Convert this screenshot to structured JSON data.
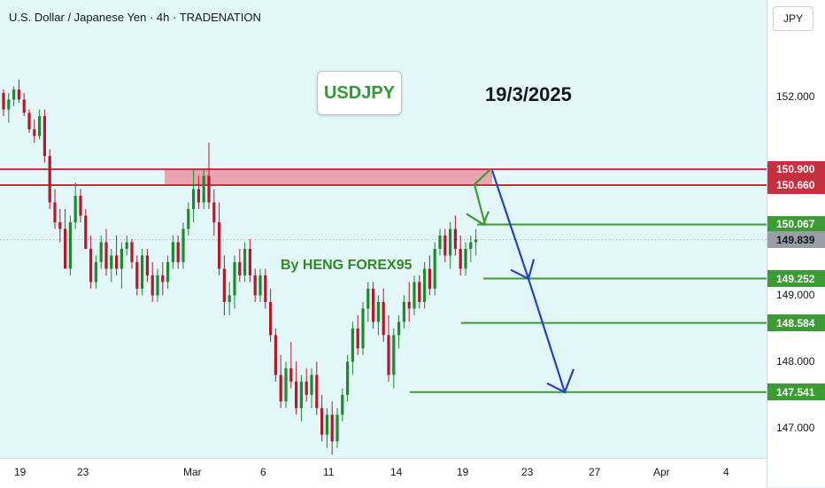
{
  "header": {
    "title": "U.S. Dollar / Japanese Yen · 4h · TRADENATION"
  },
  "currency_badge": "JPY",
  "annotations": {
    "symbol": "USDJPY",
    "date": "19/3/2025",
    "author": "By HENG FOREX95"
  },
  "colors": {
    "bull": "#1e8a2e",
    "bear": "#b3182b",
    "resistance": "#c62f3e",
    "support": "#3c9c34",
    "arrow": "#2242c4",
    "zone": "#e98a9a",
    "current": "#9a9ea4"
  },
  "chart_data": {
    "type": "candlestick",
    "title": "U.S. Dollar / Japanese Yen · 4h · TRADENATION",
    "y_ticks": [
      "152.000",
      "149.000",
      "148.000",
      "147.000"
    ],
    "y_tick_values": [
      152.0,
      149.0,
      148.0,
      147.0
    ],
    "x_ticks": [
      "19",
      "23",
      "Mar",
      "6",
      "11",
      "14",
      "19",
      "23",
      "27",
      "Apr",
      "4"
    ],
    "ylim": [
      146.55,
      153.45
    ],
    "price_levels": [
      {
        "label": "150.900",
        "value": 150.9,
        "kind": "resistance"
      },
      {
        "label": "150.660",
        "value": 150.66,
        "kind": "resistance"
      },
      {
        "label": "150.067",
        "value": 150.067,
        "kind": "support"
      },
      {
        "label": "149.839",
        "value": 149.839,
        "kind": "current"
      },
      {
        "label": "149.252",
        "value": 149.252,
        "kind": "support"
      },
      {
        "label": "148.584",
        "value": 148.584,
        "kind": "support"
      },
      {
        "label": "147.541",
        "value": 147.541,
        "kind": "support"
      }
    ],
    "resistance_zone": [
      150.66,
      150.9
    ],
    "projected_path": [
      150.88,
      149.25,
      147.54
    ],
    "series": [
      {
        "values": [
          [
            152.05,
            152.1,
            151.7,
            151.8
          ],
          [
            151.8,
            152.05,
            151.6,
            151.95
          ],
          [
            151.95,
            152.15,
            151.85,
            152.1
          ],
          [
            152.1,
            152.25,
            151.9,
            151.95
          ],
          [
            151.95,
            152.05,
            151.7,
            151.75
          ],
          [
            151.75,
            151.8,
            151.45,
            151.5
          ],
          [
            151.5,
            151.65,
            151.3,
            151.4
          ],
          [
            151.4,
            151.8,
            151.35,
            151.7
          ],
          [
            151.7,
            151.8,
            151.0,
            151.1
          ],
          [
            151.1,
            151.2,
            150.3,
            150.4
          ],
          [
            150.4,
            150.6,
            150.0,
            150.1
          ],
          [
            150.1,
            150.3,
            149.8,
            150.0
          ],
          [
            150.0,
            150.3,
            149.4,
            149.4
          ],
          [
            149.4,
            150.2,
            149.3,
            150.1
          ],
          [
            150.1,
            150.7,
            150.0,
            150.5
          ],
          [
            150.5,
            150.6,
            150.1,
            150.2
          ],
          [
            150.2,
            150.3,
            149.7,
            149.7
          ],
          [
            149.7,
            149.9,
            149.1,
            149.2
          ],
          [
            149.2,
            149.6,
            149.1,
            149.5
          ],
          [
            149.5,
            149.9,
            149.4,
            149.8
          ],
          [
            149.8,
            150.0,
            149.3,
            149.4
          ],
          [
            149.4,
            149.7,
            149.2,
            149.6
          ],
          [
            149.6,
            149.9,
            149.3,
            149.4
          ],
          [
            149.4,
            149.8,
            149.1,
            149.7
          ],
          [
            149.7,
            149.9,
            149.6,
            149.8
          ],
          [
            149.8,
            149.85,
            149.4,
            149.5
          ],
          [
            149.5,
            149.6,
            149.0,
            149.1
          ],
          [
            149.1,
            149.7,
            149.0,
            149.6
          ],
          [
            149.6,
            149.7,
            149.2,
            149.3
          ],
          [
            149.3,
            149.5,
            148.9,
            149.0
          ],
          [
            149.0,
            149.4,
            148.9,
            149.3
          ],
          [
            149.3,
            149.5,
            149.0,
            149.2
          ],
          [
            149.2,
            149.6,
            149.1,
            149.5
          ],
          [
            149.5,
            149.9,
            149.4,
            149.8
          ],
          [
            149.8,
            149.9,
            149.4,
            149.5
          ],
          [
            149.5,
            150.1,
            149.4,
            150.0
          ],
          [
            150.0,
            150.4,
            149.9,
            150.3
          ],
          [
            150.3,
            150.9,
            150.1,
            150.6
          ],
          [
            150.6,
            150.8,
            150.3,
            150.4
          ],
          [
            150.4,
            150.9,
            150.3,
            150.8
          ],
          [
            150.8,
            151.3,
            150.3,
            150.4
          ],
          [
            150.4,
            150.6,
            149.9,
            150.1
          ],
          [
            150.1,
            150.4,
            149.3,
            149.4
          ],
          [
            149.4,
            149.6,
            148.7,
            148.9
          ],
          [
            148.9,
            149.2,
            148.7,
            149.0
          ],
          [
            149.0,
            149.6,
            148.8,
            149.5
          ],
          [
            149.5,
            149.7,
            149.2,
            149.3
          ],
          [
            149.3,
            149.8,
            149.2,
            149.7
          ],
          [
            149.7,
            149.85,
            149.2,
            149.3
          ],
          [
            149.3,
            149.4,
            148.9,
            149.0
          ],
          [
            149.0,
            149.4,
            148.9,
            149.3
          ],
          [
            149.3,
            149.4,
            148.8,
            148.9
          ],
          [
            148.9,
            149.1,
            148.3,
            148.4
          ],
          [
            148.4,
            148.5,
            147.7,
            147.8
          ],
          [
            147.8,
            148.1,
            147.3,
            147.4
          ],
          [
            147.4,
            148.0,
            147.3,
            147.9
          ],
          [
            147.9,
            148.3,
            147.6,
            147.7
          ],
          [
            147.7,
            148.0,
            147.2,
            147.3
          ],
          [
            147.3,
            147.8,
            147.1,
            147.7
          ],
          [
            147.7,
            147.9,
            147.4,
            147.5
          ],
          [
            147.5,
            147.9,
            147.3,
            147.8
          ],
          [
            147.8,
            148.0,
            147.2,
            147.3
          ],
          [
            147.3,
            147.5,
            146.8,
            146.9
          ],
          [
            146.9,
            147.3,
            146.7,
            147.2
          ],
          [
            147.2,
            147.4,
            146.6,
            146.8
          ],
          [
            146.8,
            147.3,
            146.7,
            147.2
          ],
          [
            147.2,
            147.6,
            147.1,
            147.5
          ],
          [
            147.5,
            148.1,
            147.4,
            148.0
          ],
          [
            148.0,
            148.6,
            147.8,
            148.5
          ],
          [
            148.5,
            148.7,
            148.1,
            148.2
          ],
          [
            148.2,
            148.9,
            148.1,
            148.8
          ],
          [
            148.8,
            149.2,
            148.6,
            149.1
          ],
          [
            149.1,
            149.2,
            148.5,
            148.6
          ],
          [
            148.6,
            149.0,
            148.4,
            148.9
          ],
          [
            148.9,
            149.1,
            148.3,
            148.4
          ],
          [
            148.4,
            148.7,
            147.7,
            147.8
          ],
          [
            147.8,
            148.5,
            147.6,
            148.4
          ],
          [
            148.4,
            148.7,
            148.2,
            148.6
          ],
          [
            148.6,
            149.0,
            148.5,
            148.9
          ],
          [
            148.9,
            149.2,
            148.6,
            148.8
          ],
          [
            148.8,
            149.3,
            148.7,
            149.2
          ],
          [
            149.2,
            149.3,
            148.8,
            148.9
          ],
          [
            148.9,
            149.5,
            148.8,
            149.4
          ],
          [
            149.4,
            149.6,
            149.0,
            149.1
          ],
          [
            149.1,
            149.8,
            149.0,
            149.7
          ],
          [
            149.7,
            150.0,
            149.6,
            149.9
          ],
          [
            149.9,
            150.0,
            149.5,
            149.6
          ],
          [
            149.6,
            150.1,
            149.4,
            150.0
          ],
          [
            150.0,
            150.2,
            149.6,
            149.7
          ],
          [
            149.7,
            149.9,
            149.3,
            149.4
          ],
          [
            149.4,
            149.8,
            149.3,
            149.7
          ],
          [
            149.7,
            149.9,
            149.5,
            149.8
          ],
          [
            149.8,
            150.0,
            149.6,
            149.84
          ]
        ]
      }
    ]
  },
  "time_axis": [
    "19",
    "23",
    "Mar",
    "6",
    "11",
    "14",
    "19",
    "23",
    "27",
    "Apr",
    "4"
  ]
}
